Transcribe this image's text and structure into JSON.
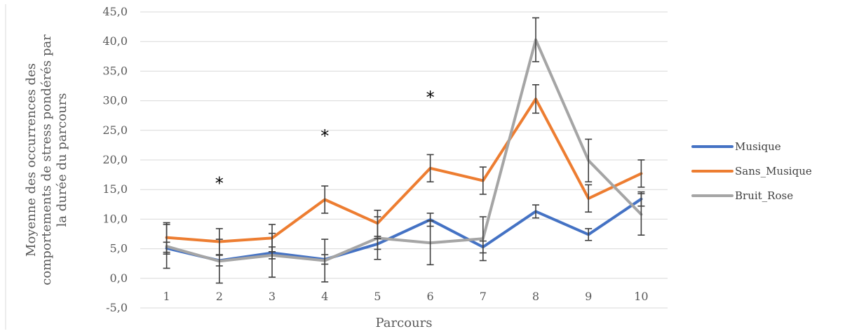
{
  "chart_data": {
    "type": "line",
    "title": "",
    "xlabel": "Parcours",
    "ylabel_lines": [
      "Moyenne des occurrences des",
      "comportements de stress pondérés par",
      "la durée du parcours"
    ],
    "categories": [
      "1",
      "2",
      "3",
      "4",
      "5",
      "6",
      "7",
      "8",
      "9",
      "10"
    ],
    "ylim": [
      -5,
      45
    ],
    "yticks": [
      "-5,0",
      "0,0",
      "5,0",
      "10,0",
      "15,0",
      "20,0",
      "25,0",
      "30,0",
      "35,0",
      "40,0",
      "45,0"
    ],
    "ytick_values": [
      -5,
      0,
      5,
      10,
      15,
      20,
      25,
      30,
      35,
      40,
      45
    ],
    "grid": true,
    "legend_position": "right",
    "series": [
      {
        "name": "Musique",
        "color": "#4472c4",
        "values": [
          5.1,
          3.0,
          4.3,
          3.2,
          5.8,
          9.9,
          5.3,
          11.3,
          7.4,
          13.4
        ],
        "errors": [
          1.0,
          0.9,
          1.0,
          0.8,
          0.9,
          1.1,
          1.0,
          1.1,
          1.0,
          1.2
        ]
      },
      {
        "name": "Sans_Musique",
        "color": "#ed7d31",
        "values": [
          6.9,
          6.2,
          6.8,
          13.3,
          9.3,
          18.6,
          16.5,
          30.3,
          13.5,
          17.7
        ],
        "errors": [
          2.5,
          2.2,
          2.3,
          2.3,
          2.2,
          2.3,
          2.3,
          2.4,
          2.3,
          2.3
        ]
      },
      {
        "name": "Bruit_Rose",
        "color": "#a5a5a5",
        "values": [
          5.4,
          2.9,
          3.9,
          3.0,
          6.8,
          6.0,
          6.7,
          40.3,
          19.9,
          10.8
        ],
        "errors": [
          3.7,
          3.7,
          3.7,
          3.6,
          3.6,
          3.7,
          3.7,
          3.7,
          3.6,
          3.5
        ]
      }
    ],
    "annotations": [
      {
        "text": "*",
        "category": "2",
        "y": 16.5
      },
      {
        "text": "*",
        "category": "4",
        "y": 24.5
      },
      {
        "text": "*",
        "category": "6",
        "y": 31.0
      }
    ]
  }
}
